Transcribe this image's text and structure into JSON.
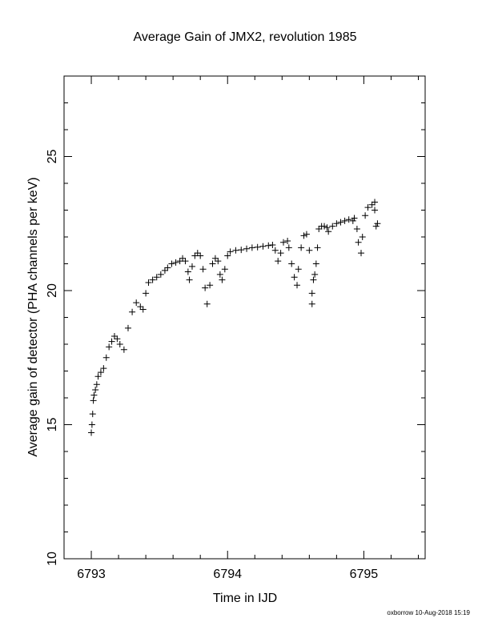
{
  "chart_data": {
    "type": "scatter",
    "title": "Average Gain of JMX2, revolution 1985",
    "xlabel": "Time in IJD",
    "ylabel": "Average gain of detector (PHA channels per keV)",
    "footer": "oxborrow 10-Aug-2018 15:19",
    "marker": "+",
    "color": "#000000",
    "xlim": [
      6792.8,
      6795.45
    ],
    "ylim": [
      10,
      28
    ],
    "xticks": [
      6793,
      6794,
      6795
    ],
    "yticks": [
      10,
      15,
      20,
      25
    ],
    "xminorticks": [
      6792.8,
      6793.2,
      6793.4,
      6793.6,
      6793.8,
      6794.2,
      6794.4,
      6794.6,
      6794.8,
      6795.2,
      6795.4
    ],
    "yminorticks": [
      11,
      12,
      13,
      14,
      16,
      17,
      18,
      19,
      21,
      22,
      23,
      24,
      26,
      27
    ],
    "x": [
      6793.0,
      6793.005,
      6793.01,
      6793.015,
      6793.02,
      6793.03,
      6793.04,
      6793.05,
      6793.07,
      6793.09,
      6793.11,
      6793.13,
      6793.15,
      6793.17,
      6793.19,
      6793.21,
      6793.24,
      6793.27,
      6793.3,
      6793.33,
      6793.36,
      6793.38,
      6793.4,
      6793.42,
      6793.45,
      6793.48,
      6793.51,
      6793.54,
      6793.56,
      6793.59,
      6793.62,
      6793.65,
      6793.67,
      6793.69,
      6793.71,
      6793.72,
      6793.74,
      6793.76,
      6793.78,
      6793.8,
      6793.82,
      6793.835,
      6793.85,
      6793.87,
      6793.89,
      6793.91,
      6793.93,
      6793.945,
      6793.96,
      6793.98,
      6794.0,
      6794.02,
      6794.06,
      6794.1,
      6794.14,
      6794.18,
      6794.22,
      6794.26,
      6794.3,
      6794.33,
      6794.35,
      6794.37,
      6794.39,
      6794.41,
      6794.44,
      6794.45,
      6794.47,
      6794.49,
      6794.51,
      6794.52,
      6794.54,
      6794.56,
      6794.58,
      6794.6,
      6794.62,
      6794.62,
      6794.63,
      6794.64,
      6794.65,
      6794.66,
      6794.67,
      6794.69,
      6794.71,
      6794.73,
      6794.74,
      6794.77,
      6794.8,
      6794.83,
      6794.86,
      6794.89,
      6794.92,
      6794.93,
      6794.95,
      6794.96,
      6794.98,
      6794.99,
      6795.01,
      6795.03,
      6795.06,
      6795.08,
      6795.08,
      6795.09,
      6795.1
    ],
    "values": [
      14.7,
      15.0,
      15.4,
      15.9,
      16.1,
      16.3,
      16.5,
      16.8,
      16.95,
      17.1,
      17.5,
      17.9,
      18.1,
      18.3,
      18.2,
      18.0,
      17.8,
      18.6,
      19.2,
      19.55,
      19.4,
      19.3,
      19.9,
      20.3,
      20.4,
      20.5,
      20.6,
      20.75,
      20.85,
      21.0,
      21.05,
      21.1,
      21.2,
      21.1,
      20.7,
      20.4,
      20.9,
      21.3,
      21.4,
      21.3,
      20.8,
      20.1,
      19.5,
      20.2,
      21.0,
      21.2,
      21.1,
      20.6,
      20.4,
      20.8,
      21.3,
      21.45,
      21.5,
      21.52,
      21.56,
      21.6,
      21.62,
      21.65,
      21.68,
      21.7,
      21.5,
      21.1,
      21.4,
      21.8,
      21.85,
      21.6,
      21.0,
      20.5,
      20.2,
      20.8,
      21.6,
      22.05,
      22.1,
      21.5,
      19.5,
      19.9,
      20.4,
      20.6,
      21.0,
      21.6,
      22.3,
      22.4,
      22.4,
      22.35,
      22.2,
      22.4,
      22.5,
      22.55,
      22.6,
      22.65,
      22.6,
      22.7,
      22.3,
      21.8,
      21.4,
      22.0,
      22.8,
      23.1,
      23.2,
      23.3,
      23.0,
      22.4,
      22.5
    ]
  }
}
